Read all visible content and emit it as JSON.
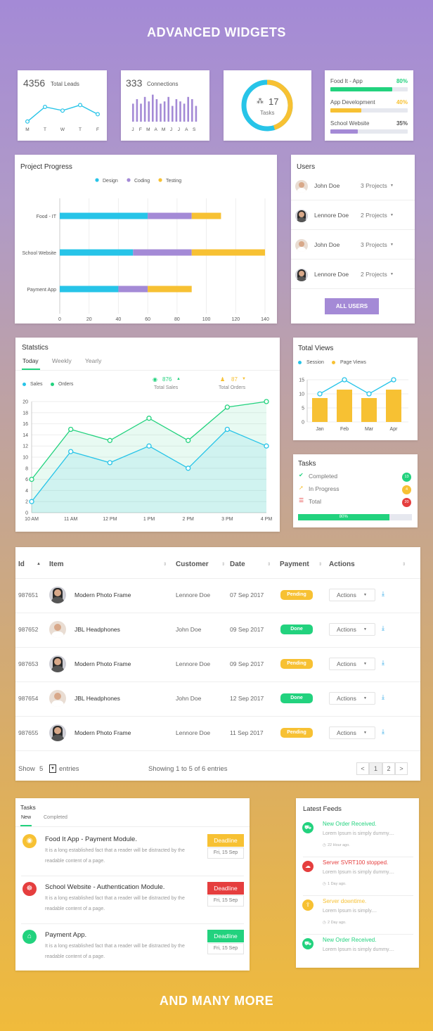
{
  "header": {
    "title": "ADVANCED WIDGETS"
  },
  "footer": {
    "title": "AND MANY MORE"
  },
  "colors": {
    "blue": "#27c4e8",
    "purple": "#a48ad6",
    "yellow": "#f7c133",
    "green": "#22d27e",
    "red": "#e53e3e"
  },
  "leads": {
    "value": "4356",
    "label": "Total Leads",
    "days": [
      "M",
      "T",
      "W",
      "T",
      "F"
    ],
    "points": [
      3,
      7,
      6,
      7.5,
      5
    ]
  },
  "connections": {
    "value": "333",
    "label": "Connections",
    "months": [
      "J",
      "F",
      "M",
      "A",
      "M",
      "J",
      "J",
      "A",
      "S"
    ],
    "bars": [
      8,
      10,
      8,
      11,
      9,
      12,
      10,
      8,
      9,
      11,
      7,
      10,
      9,
      8,
      11,
      10,
      7
    ]
  },
  "tasks_donut": {
    "value": "17",
    "label": "Tasks",
    "icon": "cubes-icon",
    "segments": [
      0.45,
      0.55
    ]
  },
  "project_progress_mini": [
    {
      "label": "Food It - App",
      "pct": "80%",
      "value": 0.8,
      "color": "#22d27e"
    },
    {
      "label": "App Development",
      "pct": "40%",
      "value": 0.4,
      "color": "#f7c133"
    },
    {
      "label": "School Website",
      "pct": "35%",
      "value": 0.35,
      "color": "#a48ad6"
    }
  ],
  "project_progress": {
    "title": "Project Progress",
    "chart_data": {
      "type": "bar",
      "orientation": "horizontal",
      "stacked": true,
      "categories": [
        "Food - IT",
        "School Website",
        "Payment App"
      ],
      "series": [
        {
          "name": "Design",
          "values": [
            60,
            50,
            40
          ],
          "color": "#27c4e8"
        },
        {
          "name": "Coding",
          "values": [
            30,
            40,
            20
          ],
          "color": "#a48ad6"
        },
        {
          "name": "Testing",
          "values": [
            20,
            50,
            30
          ],
          "color": "#f7c133"
        }
      ],
      "xticks": [
        "0",
        "20",
        "40",
        "60",
        "80",
        "100",
        "120",
        "140"
      ],
      "xlim": [
        0,
        140
      ],
      "legend": "top"
    }
  },
  "users": {
    "title": "Users",
    "items": [
      {
        "name": "John Doe",
        "projects": "3 Projects",
        "avatar": "male"
      },
      {
        "name": "Lennore Doe",
        "projects": "2 Projects",
        "avatar": "female"
      },
      {
        "name": "John Doe",
        "projects": "3 Projects",
        "avatar": "male"
      },
      {
        "name": "Lennore Doe",
        "projects": "2 Projects",
        "avatar": "female"
      }
    ],
    "button": "ALL USERS"
  },
  "statistics": {
    "title": "Statstics",
    "tabs": [
      "Today",
      "Weekly",
      "Yearly"
    ],
    "legend": [
      "Sales",
      "Orders"
    ],
    "total_sales": {
      "value": "876",
      "label": "Total Sales"
    },
    "total_orders": {
      "value": "87",
      "label": "Total Orders"
    },
    "chart_data": {
      "type": "area",
      "x": [
        "10 AM",
        "11 AM",
        "12 PM",
        "1 PM",
        "2 PM",
        "3 PM",
        "4 PM"
      ],
      "series": [
        {
          "name": "Sales",
          "values": [
            2,
            11,
            9,
            12,
            8,
            15,
            12
          ],
          "color": "#27c4e8"
        },
        {
          "name": "Orders",
          "values": [
            6,
            15,
            13,
            17,
            13,
            19,
            20
          ],
          "color": "#22d27e"
        }
      ],
      "yticks": [
        "0",
        "2",
        "4",
        "6",
        "8",
        "10",
        "12",
        "14",
        "16",
        "18",
        "20"
      ],
      "ylim": [
        0,
        20
      ],
      "legend": "top-left"
    }
  },
  "total_views": {
    "title": "Total Views",
    "legend": [
      "Session",
      "Page Views"
    ],
    "chart_data": {
      "type": "bar",
      "x": [
        "Jan",
        "Feb",
        "Mar",
        "Apr"
      ],
      "series": [
        {
          "name": "Page Views",
          "type": "bar",
          "values": [
            8.5,
            11.5,
            8.5,
            11.5
          ],
          "color": "#f7c133"
        },
        {
          "name": "Session",
          "type": "line",
          "values": [
            10,
            15,
            10,
            15
          ],
          "color": "#27c4e8"
        }
      ],
      "yticks": [
        "0",
        "5",
        "10",
        "15"
      ],
      "ylim": [
        0,
        15
      ]
    }
  },
  "tasks_summary": {
    "title": "Tasks",
    "items": [
      {
        "label": "Completed",
        "count": "13",
        "color": "#22d27e",
        "icon": "check-circle-icon"
      },
      {
        "label": "In Progress",
        "count": "4",
        "color": "#f7c133",
        "icon": "rocket-icon"
      },
      {
        "label": "Total",
        "count": "20",
        "color": "#e53e3e",
        "icon": "list-icon"
      }
    ],
    "progress": {
      "label": "80%",
      "value": 0.8
    }
  },
  "orders_table": {
    "headers": [
      "Id",
      "Item",
      "Customer",
      "Date",
      "Payment",
      "Actions"
    ],
    "rows": [
      {
        "id": "987651",
        "item": "Modern Photo Frame",
        "customer": "Lennore Doe",
        "date": "07 Sep 2017",
        "payment": "Pending",
        "avatar": "female"
      },
      {
        "id": "987652",
        "item": "JBL Headphones",
        "customer": "John Doe",
        "date": "09 Sep 2017",
        "payment": "Done",
        "avatar": "male"
      },
      {
        "id": "987653",
        "item": "Modern Photo Frame",
        "customer": "Lennore Doe",
        "date": "09 Sep 2017",
        "payment": "Pending",
        "avatar": "female"
      },
      {
        "id": "987654",
        "item": "JBL Headphones",
        "customer": "John Doe",
        "date": "12 Sep 2017",
        "payment": "Done",
        "avatar": "male"
      },
      {
        "id": "987655",
        "item": "Modern Photo Frame",
        "customer": "Lennore Doe",
        "date": "11 Sep 2017",
        "payment": "Pending",
        "avatar": "female"
      }
    ],
    "action_label": "Actions",
    "show": "Show",
    "entries_value": "5",
    "entries": "entries",
    "showing": "Showing 1 to 5 of 6 entries",
    "pager": [
      "<",
      "1",
      "2",
      ">"
    ]
  },
  "tasks_list": {
    "title": "Tasks",
    "tabs": [
      "New",
      "Completed"
    ],
    "items": [
      {
        "title": "Food It App - Payment Module.",
        "desc": "It is a long established fact that a reader will be distracted by the readable content of a page.",
        "deadline": "Deadline",
        "date": "Fri, 15 Sep",
        "color": "#f7c133",
        "deadline_color": "#f7c133",
        "icon": "coin-icon"
      },
      {
        "title": "School Website - Authentication Module.",
        "desc": "It is a long established fact that a reader will be distracted by the readable content of a page.",
        "deadline": "Deadline",
        "date": "Fri, 15 Sep",
        "color": "#e53e3e",
        "deadline_color": "#e53e3e",
        "icon": "users-icon"
      },
      {
        "title": "Payment App.",
        "desc": "It is a long established fact that a reader will be distracted by the readable content of a page.",
        "deadline": "Deadline",
        "date": "Fri, 15 Sep",
        "color": "#22d27e",
        "deadline_color": "#22d27e",
        "icon": "bank-icon"
      }
    ]
  },
  "feeds": {
    "title": "Latest Feeds",
    "items": [
      {
        "title": "New Order Received.",
        "desc": "Lorem Ipsum is simply dummy....",
        "time": "22 Hour ago.",
        "color": "#22d27e",
        "icon": "cart-icon"
      },
      {
        "title": "Server SVRT100 stopped.",
        "desc": "Lorem Ipsum is simply dummy....",
        "time": "1 Day ago.",
        "color": "#e53e3e",
        "icon": "cloud-icon"
      },
      {
        "title": "Server downtime.",
        "desc": "Lorem Ipsum is simply....",
        "time": "2 Day ago.",
        "color": "#f7c133",
        "icon": "cloud-upload-icon"
      },
      {
        "title": "New Order Received.",
        "desc": "Lorem Ipsum is simply dummy....",
        "time": "",
        "color": "#22d27e",
        "icon": "cart-icon"
      }
    ]
  }
}
